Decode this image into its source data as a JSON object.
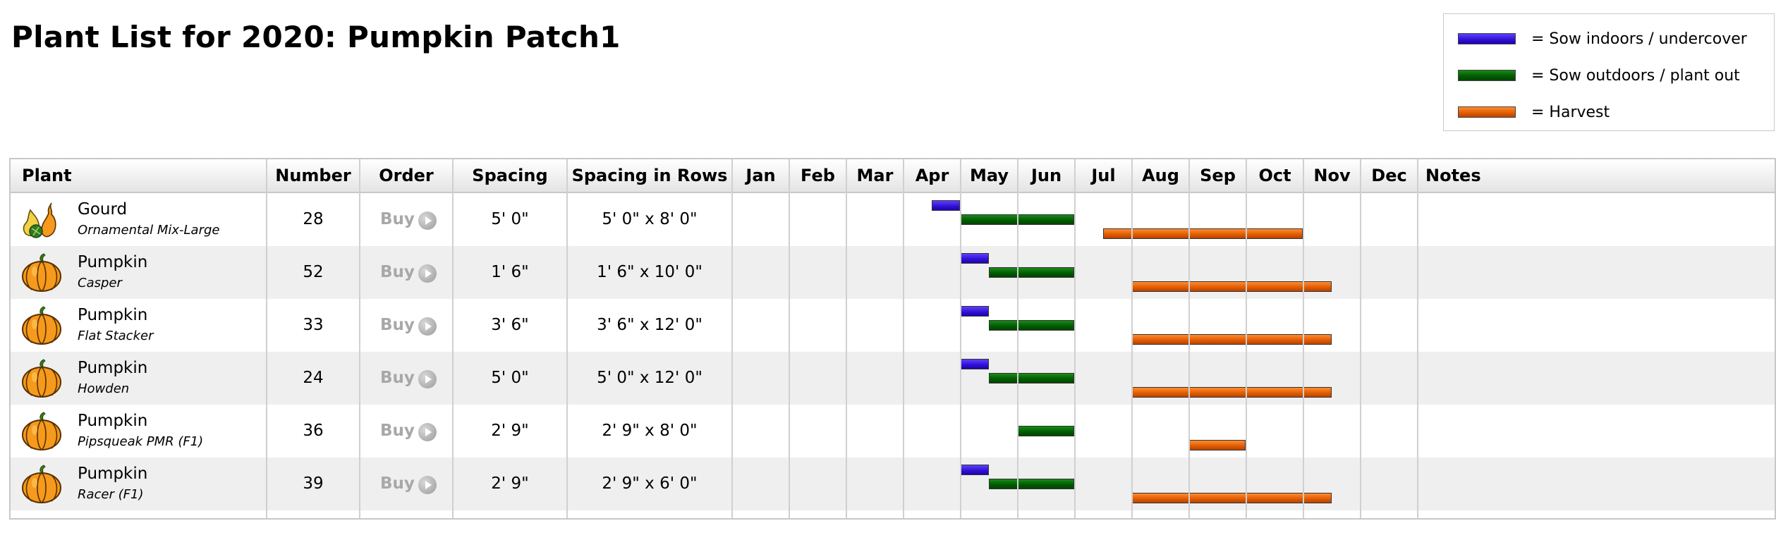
{
  "page": {
    "title": "Plant List for 2020: Pumpkin Patch1"
  },
  "legend": {
    "items": [
      {
        "label": "= Sow indoors / undercover",
        "color": "#3a1ee0",
        "type": "sow-in"
      },
      {
        "label": "= Sow outdoors / plant out",
        "color": "#005c00",
        "type": "sow-out"
      },
      {
        "label": "= Harvest",
        "color": "#e05a00",
        "type": "harvest"
      }
    ]
  },
  "table": {
    "headers": {
      "plant": "Plant",
      "number": "Number",
      "order": "Order",
      "spacing": "Spacing",
      "spacing_rows": "Spacing in Rows",
      "months": [
        "Jan",
        "Feb",
        "Mar",
        "Apr",
        "May",
        "Jun",
        "Jul",
        "Aug",
        "Sep",
        "Oct",
        "Nov",
        "Dec"
      ],
      "notes": "Notes"
    },
    "rows": [
      {
        "name": "Gourd",
        "variety": "Ornamental Mix-Large",
        "icon": "gourd-icon",
        "number": "28",
        "order": "Buy",
        "spacing": "5' 0\"",
        "spacing_rows": "5' 0\" x 8' 0\"",
        "sow_indoors": [
          3.5,
          4.0
        ],
        "sow_outdoors": [
          4.0,
          6.0
        ],
        "harvest": [
          6.5,
          10.0
        ]
      },
      {
        "name": "Pumpkin",
        "variety": "Casper",
        "icon": "pumpkin-icon",
        "number": "52",
        "order": "Buy",
        "spacing": "1' 6\"",
        "spacing_rows": "1' 6\" x 10' 0\"",
        "sow_indoors": [
          4.0,
          4.5
        ],
        "sow_outdoors": [
          4.5,
          6.0
        ],
        "harvest": [
          7.0,
          10.5
        ]
      },
      {
        "name": "Pumpkin",
        "variety": "Flat Stacker",
        "icon": "pumpkin-icon",
        "number": "33",
        "order": "Buy",
        "spacing": "3' 6\"",
        "spacing_rows": "3' 6\" x 12' 0\"",
        "sow_indoors": [
          4.0,
          4.5
        ],
        "sow_outdoors": [
          4.5,
          6.0
        ],
        "harvest": [
          7.0,
          10.5
        ]
      },
      {
        "name": "Pumpkin",
        "variety": "Howden",
        "icon": "pumpkin-icon",
        "number": "24",
        "order": "Buy",
        "spacing": "5' 0\"",
        "spacing_rows": "5' 0\" x 12' 0\"",
        "sow_indoors": [
          4.0,
          4.5
        ],
        "sow_outdoors": [
          4.5,
          6.0
        ],
        "harvest": [
          7.0,
          10.5
        ]
      },
      {
        "name": "Pumpkin",
        "variety": "Pipsqueak PMR (F1)",
        "icon": "pumpkin-icon",
        "number": "36",
        "order": "Buy",
        "spacing": "2' 9\"",
        "spacing_rows": "2' 9\" x 8' 0\"",
        "sow_indoors": null,
        "sow_outdoors": [
          5.0,
          6.0
        ],
        "harvest": [
          8.0,
          9.0
        ]
      },
      {
        "name": "Pumpkin",
        "variety": "Racer (F1)",
        "icon": "pumpkin-icon",
        "number": "39",
        "order": "Buy",
        "spacing": "2' 9\"",
        "spacing_rows": "2' 9\" x 6' 0\"",
        "sow_indoors": [
          4.0,
          4.5
        ],
        "sow_outdoors": [
          4.5,
          6.0
        ],
        "harvest": [
          7.0,
          10.5
        ]
      }
    ]
  }
}
